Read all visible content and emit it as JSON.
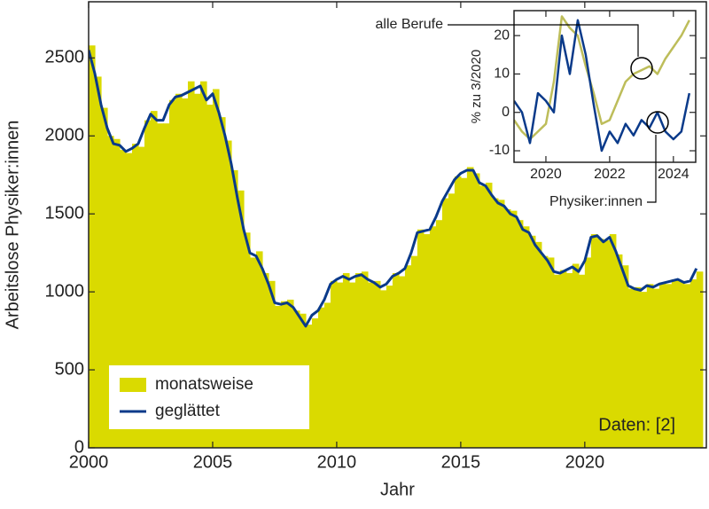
{
  "chart_data": [
    {
      "type": "bar",
      "xlabel": "Jahr",
      "ylabel": "Arbeitslose Physiker:innen",
      "annotation": "Daten: [2]",
      "legend": "lower left",
      "xlim": [
        2000,
        2024.9
      ],
      "xticks": [
        2000,
        2005,
        2010,
        2015,
        2020
      ],
      "ylim": [
        0,
        2860
      ],
      "yticks": [
        0,
        500,
        1000,
        1500,
        2000,
        2500
      ],
      "x": [
        2000,
        2000.25,
        2000.5,
        2000.75,
        2001,
        2001.25,
        2001.5,
        2001.75,
        2002,
        2002.25,
        2002.5,
        2002.75,
        2003,
        2003.25,
        2003.5,
        2003.75,
        2004,
        2004.25,
        2004.5,
        2004.75,
        2005,
        2005.25,
        2005.5,
        2005.75,
        2006,
        2006.25,
        2006.5,
        2006.75,
        2007,
        2007.25,
        2007.5,
        2007.75,
        2008,
        2008.25,
        2008.5,
        2008.75,
        2009,
        2009.25,
        2009.5,
        2009.75,
        2010,
        2010.25,
        2010.5,
        2010.75,
        2011,
        2011.25,
        2011.5,
        2011.75,
        2012,
        2012.25,
        2012.5,
        2012.75,
        2013,
        2013.25,
        2013.5,
        2013.75,
        2014,
        2014.25,
        2014.5,
        2014.75,
        2015,
        2015.25,
        2015.5,
        2015.75,
        2016,
        2016.25,
        2016.5,
        2016.75,
        2017,
        2017.25,
        2017.5,
        2017.75,
        2018,
        2018.25,
        2018.5,
        2018.75,
        2019,
        2019.25,
        2019.5,
        2019.75,
        2020,
        2020.25,
        2020.5,
        2020.75,
        2021,
        2021.25,
        2021.5,
        2021.75,
        2022,
        2022.25,
        2022.5,
        2022.75,
        2023,
        2023.25,
        2023.5,
        2023.75,
        2024,
        2024.25,
        2024.5
      ],
      "series": [
        {
          "name": "monatsweise",
          "type": "bar",
          "color": "#dada00",
          "values": [
            2580,
            2380,
            2180,
            2000,
            1980,
            1910,
            1890,
            1950,
            1930,
            2100,
            2160,
            2080,
            2080,
            2230,
            2270,
            2240,
            2350,
            2270,
            2350,
            2200,
            2300,
            2120,
            1970,
            1780,
            1650,
            1380,
            1220,
            1260,
            1120,
            1070,
            910,
            940,
            950,
            880,
            860,
            790,
            830,
            900,
            930,
            1070,
            1060,
            1120,
            1060,
            1120,
            1130,
            1060,
            1070,
            1010,
            1040,
            1120,
            1100,
            1170,
            1230,
            1400,
            1370,
            1420,
            1460,
            1600,
            1630,
            1740,
            1730,
            1800,
            1760,
            1680,
            1700,
            1600,
            1590,
            1530,
            1520,
            1460,
            1420,
            1360,
            1320,
            1230,
            1220,
            1110,
            1140,
            1120,
            1180,
            1110,
            1220,
            1370,
            1340,
            1330,
            1370,
            1240,
            1170,
            1020,
            1030,
            1000,
            1050,
            1020,
            1060,
            1050,
            1080,
            1070,
            1050,
            1080,
            1130
          ]
        },
        {
          "name": "geglättet",
          "type": "line",
          "color": "#0a3a8a",
          "values": [
            2550,
            2400,
            2200,
            2050,
            1950,
            1940,
            1900,
            1920,
            1950,
            2050,
            2140,
            2100,
            2100,
            2200,
            2250,
            2260,
            2280,
            2300,
            2320,
            2230,
            2270,
            2150,
            2000,
            1820,
            1600,
            1400,
            1250,
            1230,
            1150,
            1050,
            930,
            920,
            930,
            900,
            840,
            780,
            850,
            880,
            950,
            1050,
            1080,
            1100,
            1080,
            1100,
            1110,
            1080,
            1060,
            1030,
            1050,
            1100,
            1120,
            1150,
            1250,
            1380,
            1390,
            1400,
            1480,
            1580,
            1650,
            1720,
            1760,
            1780,
            1780,
            1700,
            1680,
            1620,
            1570,
            1550,
            1500,
            1480,
            1400,
            1380,
            1300,
            1250,
            1200,
            1130,
            1120,
            1140,
            1160,
            1130,
            1200,
            1350,
            1360,
            1320,
            1350,
            1260,
            1150,
            1040,
            1020,
            1010,
            1040,
            1030,
            1050,
            1060,
            1070,
            1080,
            1060,
            1070,
            1150
          ]
        }
      ]
    },
    {
      "type": "line",
      "ylabel": "% zu 3/2020",
      "xlim": [
        2019,
        2024.7
      ],
      "xticks": [
        2020,
        2022,
        2024
      ],
      "ylim": [
        -13,
        26.5
      ],
      "yticks": [
        -10,
        0,
        10,
        20
      ],
      "x": [
        2019,
        2019.25,
        2019.5,
        2019.75,
        2020,
        2020.25,
        2020.5,
        2020.75,
        2021,
        2021.25,
        2021.5,
        2021.75,
        2022,
        2022.25,
        2022.5,
        2022.75,
        2023,
        2023.25,
        2023.5,
        2023.75,
        2024,
        2024.25,
        2024.5
      ],
      "series": [
        {
          "name": "alle Berufe",
          "color": "#bdbd5a",
          "values": [
            -2,
            -5,
            -7,
            -5,
            -3,
            8,
            25,
            22,
            20,
            12,
            5,
            -3,
            -2,
            3,
            8,
            10,
            11,
            12,
            10,
            14,
            17,
            20,
            24
          ]
        },
        {
          "name": "Physiker:innen",
          "color": "#0a3a8a",
          "values": [
            3,
            0,
            -8,
            5,
            3,
            0,
            20,
            10,
            24,
            15,
            2,
            -10,
            -5,
            -8,
            -3,
            -6,
            -2,
            -4,
            0,
            -5,
            -7,
            -5,
            5
          ]
        }
      ]
    }
  ]
}
